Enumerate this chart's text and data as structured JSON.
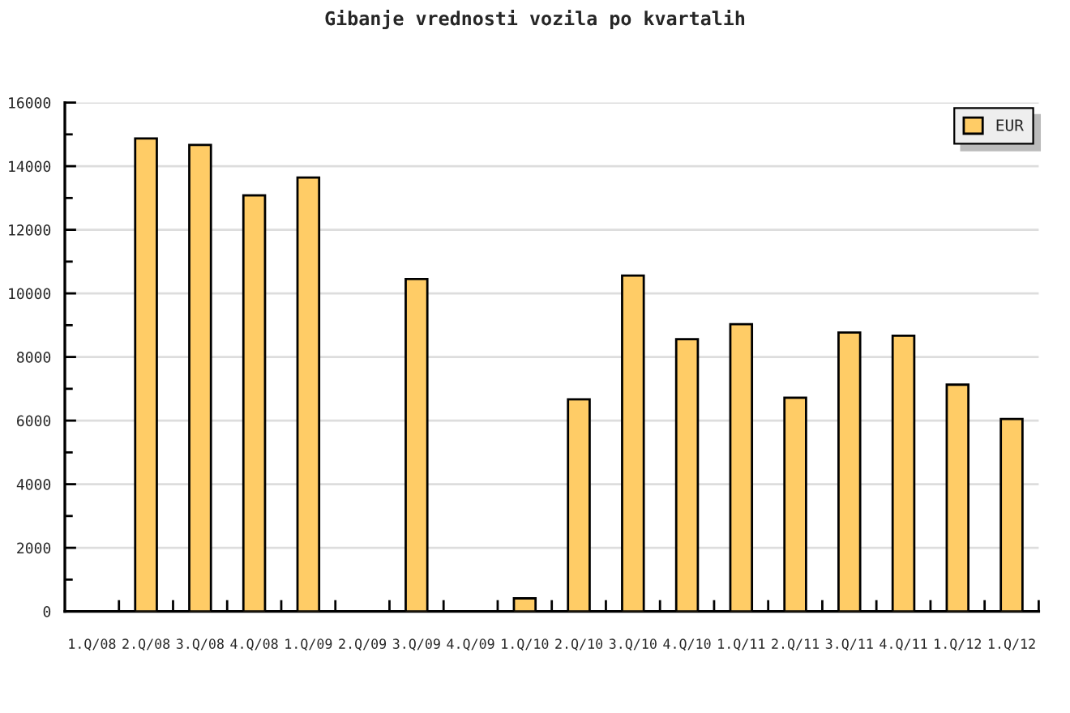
{
  "chart_data": {
    "type": "bar",
    "title": "Gibanje vrednosti vozila po kvartalih",
    "categories": [
      "1.Q/08",
      "2.Q/08",
      "3.Q/08",
      "4.Q/08",
      "1.Q/09",
      "2.Q/09",
      "3.Q/09",
      "4.Q/09",
      "1.Q/10",
      "2.Q/10",
      "3.Q/10",
      "4.Q/10",
      "1.Q/11",
      "2.Q/11",
      "3.Q/11",
      "4.Q/11",
      "1.Q/12",
      "1.Q/12"
    ],
    "series": [
      {
        "name": "EUR",
        "color": "#ffcc66",
        "values": [
          null,
          14870,
          14670,
          13080,
          13640,
          null,
          10450,
          null,
          410,
          6670,
          10560,
          8560,
          9030,
          6720,
          8770,
          8670,
          7130,
          6050
        ]
      }
    ],
    "ylim": [
      0,
      16000
    ],
    "yticks": [
      0,
      {
        "value": 1000,
        "label": null
      },
      2000,
      {
        "value": 3000,
        "label": null
      },
      4000,
      {
        "value": 5000,
        "label": null
      },
      6000,
      {
        "value": 7000,
        "label": null
      },
      8000,
      {
        "value": 9000,
        "label": null
      },
      10000,
      {
        "value": 11000,
        "label": null
      },
      12000,
      {
        "value": 13000,
        "label": null
      },
      14000,
      {
        "value": 15000,
        "label": null
      },
      16000
    ],
    "grid": "y",
    "legend": "top right"
  }
}
